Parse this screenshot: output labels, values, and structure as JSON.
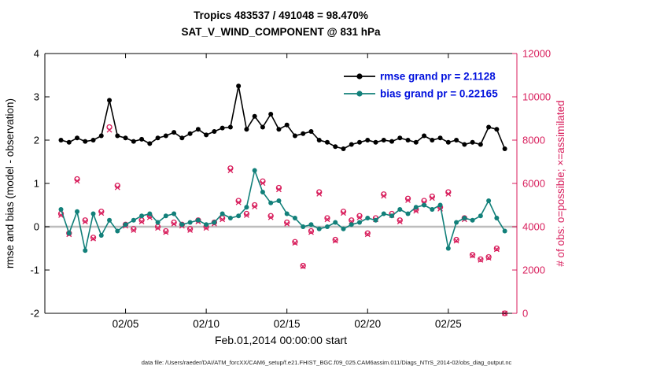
{
  "footer": "data file: /Users/raeder/DAI/ATM_forcXX/CAM6_setup/f.e21.FHIST_BGC.f09_025.CAM6assim.011/Diags_NTrS_2014-02/obs_diag_output.nc",
  "chart_data": {
    "type": "line",
    "title": "Tropics 483537 / 491048 = 98.470%",
    "subtitle": "SAT_V_WIND_COMPONENT @ 831 hPa",
    "xlabel": "Feb.01,2014 00:00:00 start",
    "ylabel_left": "rmse and bias (model - observation)",
    "ylabel_right": "# of obs: o=possible; ×=assimilated",
    "xlim": [
      0,
      29.25
    ],
    "ylim_left": [
      -2,
      4
    ],
    "ylim_right": [
      0,
      12000
    ],
    "yticks_left": [
      -2,
      -1,
      0,
      1,
      2,
      3,
      4
    ],
    "yticks_right": [
      0,
      2000,
      4000,
      6000,
      8000,
      10000,
      12000
    ],
    "xticks": [
      {
        "v": 5,
        "label": "02/05"
      },
      {
        "v": 10,
        "label": "02/10"
      },
      {
        "v": 15,
        "label": "02/15"
      },
      {
        "v": 20,
        "label": "02/20"
      },
      {
        "v": 25,
        "label": "02/25"
      }
    ],
    "grid": false,
    "legend_position": "top-right-inside",
    "legend": [
      {
        "label": "rmse grand pr = 2.1128",
        "color": "#000000"
      },
      {
        "label": "bias grand pr = 0.22165",
        "color": "#12807a"
      }
    ],
    "colors": {
      "rmse": "#000000",
      "bias": "#12807a",
      "obs": "#d81e5c",
      "right_axis": "#d81e5c",
      "legend_text": "#0010dd",
      "zero_line": "#bdbdbd",
      "axis": "#000000"
    },
    "x": [
      1,
      1.5,
      2,
      2.5,
      3,
      3.5,
      4,
      4.5,
      5,
      5.5,
      6,
      6.5,
      7,
      7.5,
      8,
      8.5,
      9,
      9.5,
      10,
      10.5,
      11,
      11.5,
      12,
      12.5,
      13,
      13.5,
      14,
      14.5,
      15,
      15.5,
      16,
      16.5,
      17,
      17.5,
      18,
      18.5,
      19,
      19.5,
      20,
      20.5,
      21,
      21.5,
      22,
      22.5,
      23,
      23.5,
      24,
      24.5,
      25,
      25.5,
      26,
      26.5,
      27,
      27.5,
      28,
      28.5
    ],
    "series": [
      {
        "name": "rmse",
        "axis": "left",
        "values": [
          2.0,
          1.95,
          2.05,
          1.97,
          2.0,
          2.1,
          2.92,
          2.1,
          2.05,
          1.97,
          2.02,
          1.92,
          2.05,
          2.1,
          2.18,
          2.05,
          2.15,
          2.25,
          2.12,
          2.2,
          2.28,
          2.3,
          3.25,
          2.25,
          2.55,
          2.3,
          2.6,
          2.25,
          2.35,
          2.1,
          2.15,
          2.2,
          2.0,
          1.95,
          1.85,
          1.8,
          1.9,
          1.95,
          2.0,
          1.95,
          2.0,
          1.97,
          2.05,
          2.0,
          1.95,
          2.1,
          2.0,
          2.05,
          1.95,
          2.0,
          1.9,
          1.95,
          1.9,
          2.3,
          2.25,
          1.8
        ]
      },
      {
        "name": "bias",
        "axis": "left",
        "values": [
          0.4,
          -0.15,
          0.35,
          -0.55,
          0.3,
          -0.2,
          0.15,
          -0.1,
          0.05,
          0.15,
          0.25,
          0.3,
          0.1,
          0.25,
          0.3,
          0.05,
          0.1,
          0.15,
          0.05,
          0.1,
          0.3,
          0.2,
          0.25,
          0.45,
          1.3,
          0.8,
          0.55,
          0.6,
          0.3,
          0.2,
          0.0,
          0.05,
          -0.05,
          0.0,
          0.1,
          -0.05,
          0.05,
          0.1,
          0.2,
          0.15,
          0.3,
          0.25,
          0.4,
          0.3,
          0.45,
          0.5,
          0.4,
          0.5,
          -0.5,
          0.1,
          0.2,
          0.15,
          0.25,
          0.6,
          0.2,
          -0.1
        ]
      },
      {
        "name": "obs_possible",
        "axis": "right",
        "marker": "o",
        "values": [
          4600,
          3700,
          6200,
          4300,
          3500,
          4700,
          8600,
          5900,
          4100,
          3900,
          4300,
          4500,
          4000,
          3800,
          4200,
          4100,
          3900,
          4300,
          4000,
          4200,
          4400,
          6700,
          5200,
          4600,
          5000,
          6100,
          4500,
          5800,
          4200,
          3300,
          2200,
          3800,
          5600,
          4400,
          3400,
          4700,
          4300,
          4500,
          3700,
          4400,
          5500,
          4600,
          4300,
          5300,
          4800,
          5200,
          5400,
          4900,
          5600,
          3400,
          4400,
          2700,
          2500,
          2600,
          3000,
          0
        ]
      },
      {
        "name": "obs_assimilated",
        "axis": "right",
        "marker": "x",
        "values": [
          4530,
          3645,
          6110,
          4235,
          3450,
          4630,
          8470,
          5810,
          4040,
          3840,
          4235,
          4430,
          3940,
          3745,
          4135,
          4040,
          3840,
          4235,
          3940,
          4135,
          4335,
          6600,
          5120,
          4530,
          4925,
          6010,
          4430,
          5715,
          4135,
          3250,
          2165,
          3745,
          5515,
          4335,
          3350,
          4630,
          4235,
          4430,
          3645,
          4335,
          5420,
          4530,
          4235,
          5220,
          4730,
          5120,
          5320,
          4825,
          5515,
          3350,
          4335,
          2660,
          2460,
          2560,
          2955,
          0
        ]
      }
    ]
  }
}
